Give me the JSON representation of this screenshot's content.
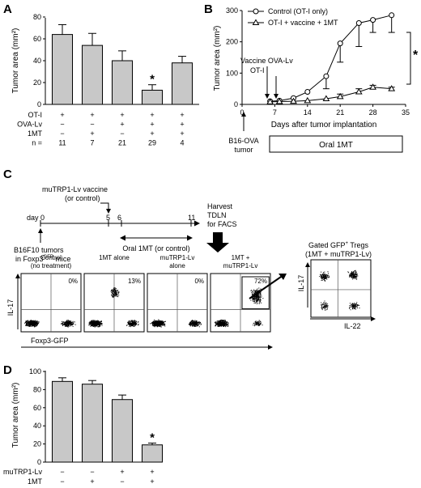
{
  "panels": {
    "A": "A",
    "B": "B",
    "C": "C",
    "D": "D"
  },
  "panelA": {
    "chart_data": {
      "type": "bar",
      "ylabel": "Tumor area (mm²)",
      "ylim": [
        0,
        80
      ],
      "yticks": [
        "0",
        "20",
        "40",
        "60",
        "80"
      ],
      "values": [
        64,
        54,
        40,
        13,
        38
      ],
      "errors": [
        9,
        11,
        9,
        5,
        6
      ],
      "significant": [
        false,
        false,
        false,
        true,
        false
      ],
      "star": "*",
      "rows": [
        {
          "label": "OT-I",
          "cells": [
            "+",
            "+",
            "+",
            "+",
            "+"
          ]
        },
        {
          "label": "OVA-Lv",
          "cells": [
            "−",
            "−",
            "+",
            "+",
            "+"
          ]
        },
        {
          "label": "1MT",
          "cells": [
            "−",
            "+",
            "−",
            "+",
            "+"
          ]
        },
        {
          "label": "n =",
          "cells": [
            "11",
            "7",
            "21",
            "29",
            "4"
          ]
        }
      ]
    }
  },
  "panelB": {
    "chart_data": {
      "type": "line",
      "xlabel": "Days after tumor implantation",
      "ylabel": "Tumor area (mm²)",
      "xlim": [
        0,
        35
      ],
      "ylim": [
        0,
        300
      ],
      "xticks": [
        "0",
        "7",
        "14",
        "21",
        "28",
        "35"
      ],
      "yticks": [
        "0",
        "100",
        "200",
        "300"
      ],
      "series": [
        {
          "name": "Control (OT-I only)",
          "marker": "circle",
          "x": [
            6,
            8,
            11,
            14,
            18,
            21,
            25,
            28,
            32
          ],
          "y": [
            10,
            12,
            20,
            40,
            90,
            195,
            260,
            270,
            285
          ],
          "err": [
            0,
            0,
            0,
            0,
            40,
            60,
            75,
            40,
            55
          ]
        },
        {
          "name": "OT-I + vaccine + 1MT",
          "marker": "triangle",
          "x": [
            6,
            8,
            11,
            14,
            18,
            21,
            25,
            28,
            32
          ],
          "y": [
            8,
            9,
            10,
            12,
            18,
            25,
            40,
            55,
            50
          ],
          "err": [
            0,
            0,
            0,
            0,
            0,
            8,
            10,
            6,
            5
          ]
        }
      ],
      "star": "*",
      "annotations": {
        "vaccine": "Vaccine OVA-Lv",
        "oti": "OT-I",
        "tumor1": "B16-OVA",
        "tumor2": "tumor",
        "treatment": "Oral 1MT"
      }
    }
  },
  "panelC": {
    "timeline": {
      "vaccine1": "muTRP1-Lv vaccine",
      "vaccine2": "(or control)",
      "day0": "day 0",
      "d5": "5",
      "d6": "6",
      "d11": "11",
      "harvest1": "Harvest",
      "harvest2": "TDLN",
      "harvest3": "for FACS",
      "tumor1": "B16F10 tumors",
      "tumor2": "in Foxp3",
      "tumor2sup": "GFP",
      "tumor2b": " mice",
      "oral": "Oral 1MT (or control)"
    },
    "facs": [
      {
        "title1": "Control",
        "title2": "(no treatment)",
        "pct": "0%"
      },
      {
        "title1": "1MT alone",
        "title2": "",
        "pct": "13%"
      },
      {
        "title1": "muTRP1-Lv",
        "title2": "alone",
        "pct": "0%"
      },
      {
        "title1": "1MT +",
        "title2": "muTRP1-Lv",
        "pct": "72%"
      }
    ],
    "yaxis": "IL-17",
    "xaxis": "Foxp3-GFP",
    "gated": {
      "title1a": "Gated GFP",
      "title1sup": "+",
      "title1b": " Tregs",
      "title2": "(1MT + muTRP1-Lv)",
      "ylabel": "IL-17",
      "xlabel": "IL-22"
    }
  },
  "panelD": {
    "chart_data": {
      "type": "bar",
      "ylabel": "Tumor area (mm²)",
      "ylim": [
        0,
        100
      ],
      "yticks": [
        "0",
        "20",
        "40",
        "60",
        "80",
        "100"
      ],
      "values": [
        89,
        86,
        69,
        19
      ],
      "errors": [
        4,
        4,
        5,
        2
      ],
      "significant": [
        false,
        false,
        false,
        true
      ],
      "star": "*",
      "rows": [
        {
          "label": "muTRP1-Lv",
          "cells": [
            "−",
            "−",
            "+",
            "+"
          ]
        },
        {
          "label": "1MT",
          "cells": [
            "−",
            "+",
            "−",
            "+"
          ]
        }
      ]
    }
  }
}
